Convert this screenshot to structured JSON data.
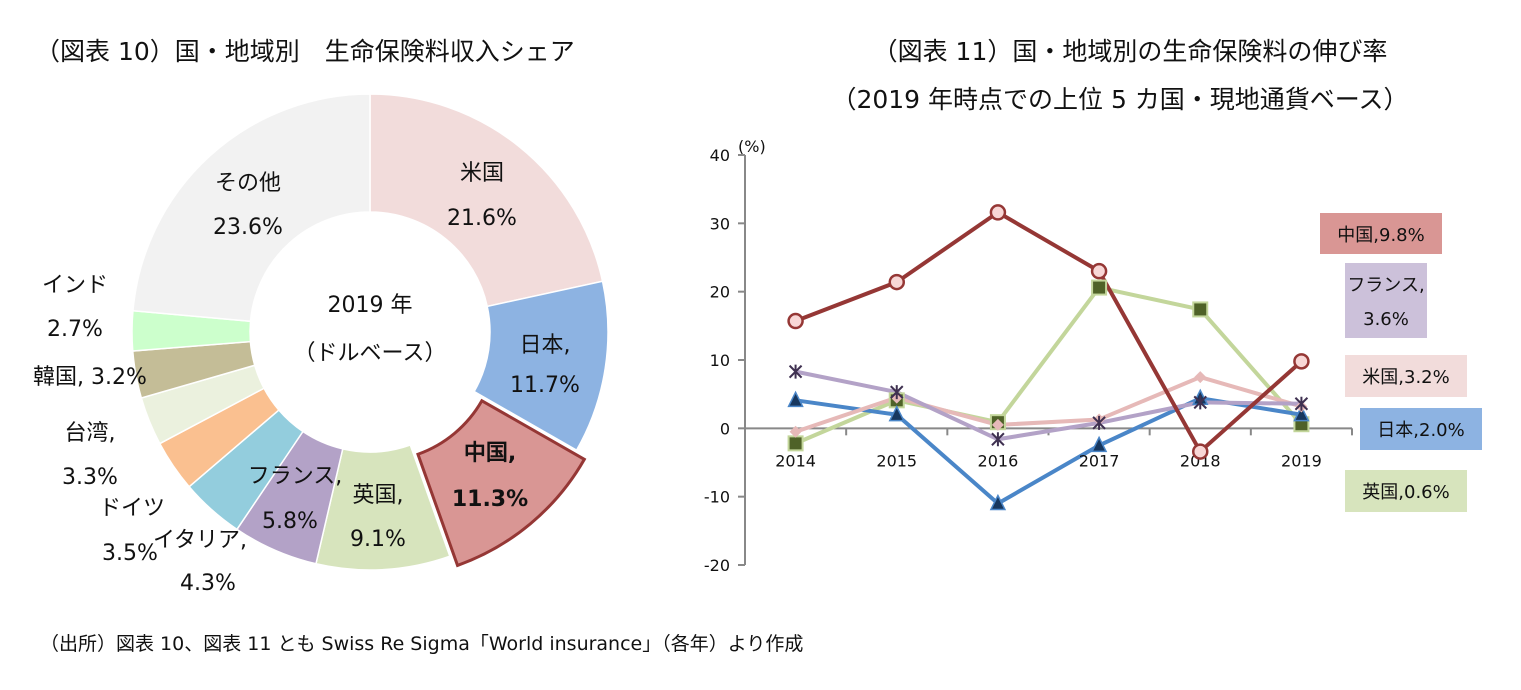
{
  "source_note": "（出所）図表 10、図表 11 とも Swiss Re Sigma「World insurance」（各年）より作成",
  "chart_data": [
    {
      "type": "pie",
      "variant": "donut",
      "title": "（図表 10）国・地域別　生命保険料収入シェア",
      "center_label": [
        "2019 年",
        "（ドルベース）"
      ],
      "slices": [
        {
          "name": "米国",
          "label": "米国",
          "value_label": "21.6%",
          "value": 21.6,
          "color": "#f2dcdb"
        },
        {
          "name": "日本",
          "label": "日本,",
          "value_label": "11.7%",
          "value": 11.7,
          "color": "#8db3e2"
        },
        {
          "name": "中国",
          "label": "中国,",
          "value_label": "11.3%",
          "value": 11.3,
          "color": "#d99694",
          "highlighted": true,
          "border_color": "#953735"
        },
        {
          "name": "英国",
          "label": "英国,",
          "value_label": "9.1%",
          "value": 9.1,
          "color": "#d7e4bd"
        },
        {
          "name": "フランス",
          "label": "フランス,",
          "value_label": "5.8%",
          "value": 5.8,
          "color": "#b3a2c7"
        },
        {
          "name": "イタリア",
          "label": "イタリア,",
          "value_label": "4.3%",
          "value": 4.3,
          "color": "#93cddd"
        },
        {
          "name": "ドイツ",
          "label": "ドイツ",
          "value_label": "3.5%",
          "value": 3.5,
          "color": "#fac090"
        },
        {
          "name": "台湾",
          "label": "台湾,",
          "value_label": "3.3%",
          "value": 3.3,
          "color": "#ebf1de"
        },
        {
          "name": "韓国",
          "label": "韓国, 3.2%",
          "value_label": "",
          "value": 3.2,
          "color": "#c4bd97"
        },
        {
          "name": "インド",
          "label": "インド",
          "value_label": "2.7%",
          "value": 2.7,
          "color": "#ccffcc"
        },
        {
          "name": "その他",
          "label": "その他",
          "value_label": "23.6%",
          "value": 23.6,
          "color": "#f2f2f2"
        }
      ]
    },
    {
      "type": "line",
      "title": [
        "（図表 11）国・地域別の生命保険料の伸び率",
        "（2019 年時点での上位 5 カ国・現地通貨ベース）"
      ],
      "ylabel": "(%)",
      "ylim": [
        -20,
        40
      ],
      "yticks": [
        "40",
        "30",
        "20",
        "10",
        "0",
        "-10",
        "-20"
      ],
      "categories": [
        "2014",
        "2015",
        "2016",
        "2017",
        "2018",
        "2019"
      ],
      "grid": false,
      "series": [
        {
          "name": "中国",
          "end_label": "中国,9.8%",
          "color": "#953735",
          "box_color": "#d99694",
          "marker": "circle",
          "values": [
            15.7,
            21.4,
            31.6,
            23.0,
            -3.4,
            9.8
          ]
        },
        {
          "name": "フランス",
          "end_label": [
            "フランス,",
            "3.6%"
          ],
          "color": "#b3a2c7",
          "box_color": "#ccc1da",
          "marker": "star",
          "values": [
            8.3,
            5.3,
            -1.6,
            0.8,
            3.8,
            3.6
          ]
        },
        {
          "name": "米国",
          "end_label": "米国,3.2%",
          "color": "#e6b9b8",
          "box_color": "#f2dcdb",
          "marker": "diamond",
          "values": [
            -0.5,
            4.5,
            0.5,
            1.3,
            7.5,
            3.2
          ]
        },
        {
          "name": "日本",
          "end_label": "日本,2.0%",
          "color": "#4a86c8",
          "box_color": "#8db3e2",
          "marker": "triangle",
          "values": [
            4.1,
            2.0,
            -11.0,
            -2.5,
            4.4,
            2.0
          ]
        },
        {
          "name": "英国",
          "end_label": "英国,0.6%",
          "color": "#c3d69b",
          "box_color": "#d7e4bd",
          "marker": "square",
          "values": [
            -2.2,
            4.1,
            0.9,
            20.6,
            17.4,
            0.6
          ]
        }
      ]
    }
  ]
}
